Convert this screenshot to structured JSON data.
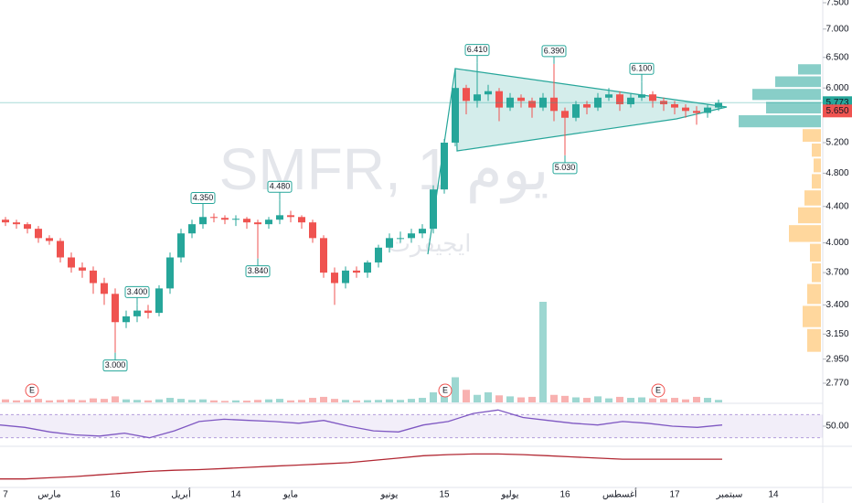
{
  "chart_data": [
    {
      "type": "candlestick",
      "title": "SMFR, 1 يوم",
      "watermark": "ايجيفرت",
      "categories": [
        "7",
        null,
        null,
        null,
        "مارس",
        null,
        null,
        null,
        null,
        null,
        "16",
        null,
        null,
        null,
        null,
        null,
        "أبريل",
        null,
        null,
        null,
        null,
        "14",
        null,
        null,
        null,
        null,
        "مايو",
        null,
        null,
        null,
        null,
        null,
        null,
        null,
        null,
        "يونيو",
        null,
        null,
        null,
        null,
        "15",
        null,
        null,
        null,
        null,
        null,
        "يوليو",
        null,
        null,
        null,
        null,
        "16",
        null,
        null,
        null,
        null,
        "أغسطس",
        null,
        null,
        null,
        null,
        "17",
        null,
        null,
        null,
        null,
        "سبتمبر",
        null,
        null,
        null,
        "14",
        null
      ],
      "open": [
        4.25,
        4.22,
        4.2,
        4.15,
        4.05,
        4.02,
        3.85,
        3.75,
        3.72,
        3.6,
        3.5,
        3.25,
        3.3,
        3.35,
        3.33,
        3.55,
        3.85,
        4.1,
        4.2,
        4.28,
        4.27,
        4.25,
        4.26,
        4.22,
        4.2,
        4.25,
        4.3,
        4.28,
        4.22,
        4.05,
        3.7,
        3.6,
        3.72,
        3.7,
        3.8,
        3.95,
        4.05,
        4.05,
        4.1,
        4.15,
        4.6,
        5.2,
        6.0,
        5.8,
        5.9,
        5.95,
        5.7,
        5.85,
        5.8,
        5.7,
        5.85,
        5.65,
        5.55,
        5.75,
        5.7,
        5.85,
        5.9,
        5.75,
        5.85,
        5.9,
        5.8,
        5.75,
        5.7,
        5.65,
        5.62,
        5.7,
        null,
        null,
        null,
        null,
        null,
        null
      ],
      "high": [
        4.28,
        4.25,
        4.22,
        4.18,
        4.08,
        4.05,
        3.9,
        3.8,
        3.76,
        3.65,
        3.55,
        3.35,
        3.4,
        3.4,
        3.58,
        3.9,
        4.15,
        4.25,
        4.35,
        4.32,
        4.3,
        4.3,
        4.28,
        4.25,
        4.28,
        4.48,
        4.35,
        4.3,
        4.25,
        4.08,
        3.75,
        3.76,
        3.76,
        3.82,
        3.98,
        4.1,
        4.12,
        4.15,
        4.2,
        4.65,
        5.25,
        6.2,
        6.05,
        6.41,
        6.05,
        6.0,
        5.92,
        5.9,
        5.85,
        5.92,
        6.39,
        5.7,
        5.8,
        5.8,
        5.92,
        6.0,
        5.95,
        5.92,
        6.1,
        5.95,
        5.85,
        5.8,
        5.75,
        5.72,
        5.75,
        5.82,
        null,
        null,
        null,
        null,
        null,
        null
      ],
      "low": [
        4.18,
        4.15,
        4.1,
        4.0,
        3.98,
        3.8,
        3.7,
        3.65,
        3.5,
        3.4,
        3.0,
        3.2,
        3.25,
        3.28,
        3.3,
        3.5,
        3.8,
        4.05,
        4.15,
        4.22,
        4.2,
        4.18,
        4.15,
        3.84,
        4.15,
        4.2,
        4.22,
        4.15,
        4.0,
        3.65,
        3.4,
        3.55,
        3.65,
        3.65,
        3.75,
        3.9,
        4.0,
        4.0,
        4.05,
        4.1,
        4.55,
        5.15,
        5.6,
        5.7,
        5.8,
        5.5,
        5.65,
        5.7,
        5.55,
        5.65,
        5.5,
        5.03,
        5.5,
        5.6,
        5.65,
        5.8,
        5.65,
        5.7,
        5.8,
        5.7,
        5.65,
        5.6,
        5.55,
        5.45,
        5.55,
        5.65,
        null,
        null,
        null,
        null,
        null,
        null
      ],
      "close": [
        4.22,
        4.2,
        4.15,
        4.05,
        4.02,
        3.85,
        3.75,
        3.72,
        3.6,
        3.5,
        3.25,
        3.3,
        3.35,
        3.33,
        3.55,
        3.85,
        4.1,
        4.2,
        4.28,
        4.27,
        4.25,
        4.26,
        4.22,
        4.2,
        4.25,
        4.3,
        4.28,
        4.22,
        4.05,
        3.7,
        3.6,
        3.72,
        3.7,
        3.8,
        3.95,
        4.05,
        4.05,
        4.1,
        4.15,
        4.6,
        5.2,
        6.0,
        5.8,
        5.9,
        5.95,
        5.7,
        5.85,
        5.8,
        5.7,
        5.85,
        5.65,
        5.55,
        5.75,
        5.7,
        5.85,
        5.9,
        5.75,
        5.85,
        5.9,
        5.8,
        5.75,
        5.7,
        5.65,
        5.62,
        5.7,
        5.77,
        null,
        null,
        null,
        null,
        null,
        null
      ],
      "volume": [
        60,
        40,
        50,
        70,
        40,
        50,
        60,
        45,
        80,
        70,
        120,
        60,
        50,
        40,
        60,
        90,
        70,
        50,
        60,
        40,
        30,
        40,
        35,
        50,
        60,
        70,
        40,
        50,
        90,
        110,
        70,
        50,
        40,
        45,
        50,
        60,
        50,
        70,
        90,
        200,
        350,
        500,
        250,
        150,
        200,
        140,
        120,
        100,
        110,
        2000,
        150,
        130,
        100,
        90,
        120,
        80,
        110,
        90,
        100,
        80,
        70,
        90,
        60,
        110,
        90,
        50,
        null,
        null,
        null,
        null,
        null,
        null
      ],
      "volume_lim": [
        0,
        2000
      ],
      "ylim": [
        2.77,
        7.5
      ],
      "log_scale": true,
      "yticks": [
        {
          "value": 7.5,
          "label": "7.500"
        },
        {
          "value": 7,
          "label": "7.000"
        },
        {
          "value": 6.5,
          "label": "6.500"
        },
        {
          "value": 6,
          "label": "6.000"
        },
        {
          "value": 5.2,
          "label": "5.200"
        },
        {
          "value": 4.8,
          "label": "4.800"
        },
        {
          "value": 4.4,
          "label": "4.400"
        },
        {
          "value": 4,
          "label": "4.000"
        },
        {
          "value": 3.7,
          "label": "3.700"
        },
        {
          "value": 3.4,
          "label": "3.400"
        },
        {
          "value": 3.15,
          "label": "3.150"
        },
        {
          "value": 2.95,
          "label": "2.950"
        },
        {
          "value": 2.77,
          "label": "2.770"
        }
      ],
      "up_color": "#26a69a",
      "down_color": "#ef5350",
      "annotations": [
        {
          "value": 6.41,
          "label": "6.410"
        },
        {
          "value": 6.39,
          "label": "6.390"
        },
        {
          "value": 6.1,
          "label": "6.100"
        },
        {
          "value": 5.03,
          "label": "5.030"
        },
        {
          "value": 4.35,
          "label": "4.350"
        },
        {
          "value": 4.48,
          "label": "4.480"
        },
        {
          "value": 3.84,
          "label": "3.840"
        },
        {
          "value": 3.4,
          "label": "3.400"
        },
        {
          "value": 3,
          "label": "3.000"
        }
      ],
      "price_labels": [
        {
          "value": 5.773,
          "label": "5.773",
          "color": "#26a69a"
        },
        {
          "value": 5.65,
          "label": "5.650",
          "color": "#ef5350"
        }
      ],
      "events": [
        "E",
        "E",
        "E"
      ],
      "volume_profile": {
        "bins": [
          3.0,
          3.2,
          3.4,
          3.6,
          3.8,
          4.0,
          4.2,
          4.4,
          4.6,
          4.8,
          5.0,
          5.2,
          5.4,
          5.6,
          5.8,
          6.0,
          6.2,
          6.4
        ],
        "values": [
          15,
          20,
          15,
          10,
          12,
          35,
          25,
          18,
          10,
          8,
          10,
          20,
          90,
          60,
          75,
          50,
          25
        ],
        "xlim": [
          0,
          100
        ]
      }
    },
    {
      "type": "line",
      "values": [
        52,
        48,
        40,
        35,
        33,
        38,
        30,
        42,
        58,
        62,
        60,
        58,
        55,
        60,
        50,
        42,
        40,
        52,
        58,
        72,
        78,
        65,
        60,
        55,
        52,
        58,
        55,
        50,
        48,
        52
      ],
      "color": "#7e57c2",
      "ylim": [
        20,
        80
      ],
      "band": [
        30,
        70
      ],
      "yticks": [
        {
          "value": 50,
          "label": "50.00"
        }
      ]
    },
    {
      "type": "line",
      "values": [
        20,
        20,
        22,
        24,
        27,
        30,
        33,
        35,
        36,
        38,
        40,
        42,
        44,
        46,
        48,
        52,
        56,
        60,
        62,
        63,
        63,
        62,
        60,
        58,
        56,
        54,
        54,
        54,
        54,
        54
      ],
      "color": "#b22833",
      "ylim": [
        10,
        70
      ]
    }
  ]
}
